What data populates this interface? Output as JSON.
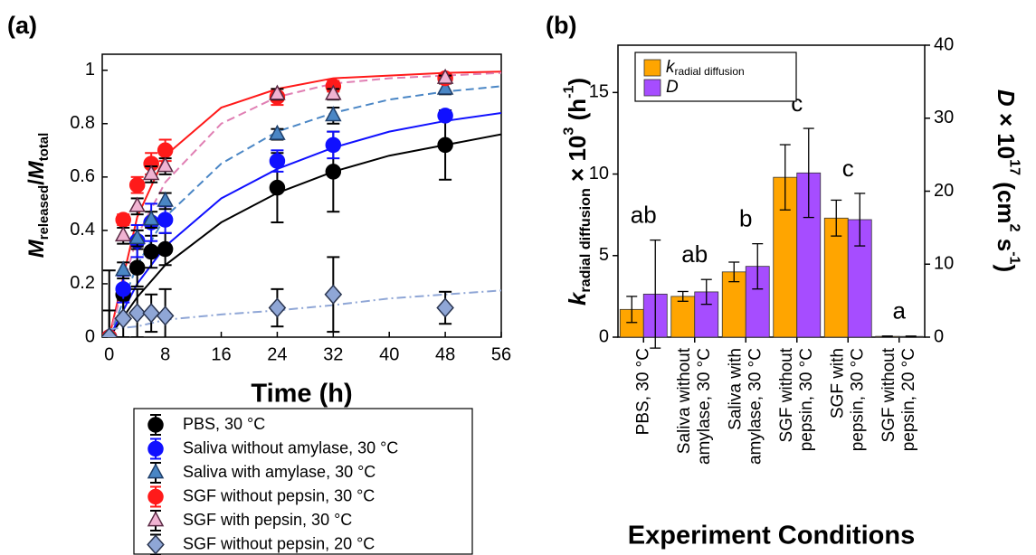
{
  "chart_data": [
    {
      "type": "line",
      "panel_label": "(a)",
      "xlabel": "Time (h)",
      "ylabel_parts": [
        "M",
        "released",
        "/",
        "M",
        "total"
      ],
      "ylabel_styles": [
        "main-italic",
        "sub",
        "main",
        "main-italic",
        "sub"
      ],
      "xlim": [
        -1,
        56
      ],
      "ylim": [
        0,
        1.06
      ],
      "xticks": [
        0,
        8,
        16,
        24,
        32,
        40,
        48,
        56
      ],
      "yticks": [
        0,
        0.2,
        0.4,
        0.6,
        0.8,
        1
      ],
      "x": [
        0,
        2,
        4,
        6,
        8,
        24,
        32,
        48
      ],
      "fit_x": [
        0,
        4,
        8,
        16,
        24,
        32,
        40,
        48,
        56
      ],
      "legend": "below",
      "series": [
        {
          "name": "PBS, 30 °C",
          "color": "#000000",
          "edge_color": "#000000",
          "marker": "circle",
          "line_style": "solid",
          "values": [
            0,
            0.16,
            0.26,
            0.32,
            0.33,
            0.56,
            0.62,
            0.72
          ],
          "errors": [
            0.25,
            0.08,
            0.07,
            0.06,
            0.06,
            0.13,
            0.15,
            0.13
          ],
          "fit_values": [
            0,
            0.15,
            0.27,
            0.43,
            0.54,
            0.62,
            0.68,
            0.72,
            0.76
          ]
        },
        {
          "name": "Saliva without amylase, 30 °C",
          "color": "#1010ff",
          "edge_color": "#1010ff",
          "marker": "circle",
          "line_style": "solid",
          "values": [
            0,
            0.18,
            0.36,
            0.43,
            0.44,
            0.66,
            0.72,
            0.83
          ],
          "errors": [
            0,
            0.05,
            0.06,
            0.07,
            0.05,
            0.04,
            0.05,
            0.01
          ],
          "fit_values": [
            0,
            0.2,
            0.34,
            0.52,
            0.63,
            0.71,
            0.77,
            0.81,
            0.84
          ]
        },
        {
          "name": "Saliva with amylase, 30 °C",
          "color": "#4a86c5",
          "edge_color": "#1f3f6a",
          "marker": "triangle",
          "line_style": "dashed",
          "values": [
            0,
            0.25,
            0.37,
            0.44,
            0.51,
            0.76,
            0.83,
            0.93
          ],
          "errors": [
            0,
            0.03,
            0.03,
            0.03,
            0.03,
            0.02,
            0.03,
            0.02
          ],
          "fit_values": [
            0,
            0.27,
            0.45,
            0.65,
            0.77,
            0.84,
            0.89,
            0.92,
            0.94
          ]
        },
        {
          "name": "SGF without pepsin, 30 °C",
          "color": "#ff1a1a",
          "edge_color": "#ff1a1a",
          "marker": "circle",
          "line_style": "solid",
          "values": [
            0,
            0.44,
            0.57,
            0.65,
            0.7,
            0.9,
            0.94,
            0.97
          ],
          "errors": [
            0,
            0.02,
            0.03,
            0.04,
            0.04,
            0.03,
            0.02,
            0.01
          ],
          "fit_values": [
            0,
            0.45,
            0.68,
            0.86,
            0.93,
            0.97,
            0.98,
            0.99,
            0.995
          ]
        },
        {
          "name": "SGF with pepsin, 30 °C",
          "color": "#f0b3d2",
          "edge_color": "#5a2a44",
          "marker": "triangle",
          "line_style": "dashed",
          "values": [
            0,
            0.38,
            0.49,
            0.61,
            0.64,
            0.91,
            0.91,
            0.97
          ],
          "errors": [
            0,
            0.03,
            0.03,
            0.03,
            0.03,
            0.02,
            0.02,
            0.01
          ],
          "fit_values": [
            0,
            0.38,
            0.58,
            0.8,
            0.9,
            0.95,
            0.97,
            0.98,
            0.99
          ]
        },
        {
          "name": "SGF without pepsin, 20 °C",
          "color": "#8fa6d6",
          "edge_color": "#2a3550",
          "marker": "diamond",
          "line_style": "dashdot",
          "values": [
            0,
            0.07,
            0.09,
            0.09,
            0.08,
            0.11,
            0.16,
            0.11
          ],
          "errors": [
            0.1,
            0.07,
            0.09,
            0.07,
            0.1,
            0.07,
            0.14,
            0.06
          ],
          "fit_values": [
            0.03,
            0.04,
            0.065,
            0.085,
            0.1,
            0.12,
            0.145,
            0.16,
            0.175
          ]
        }
      ]
    },
    {
      "type": "bar",
      "panel_label": "(b)",
      "xlabel": "Experiment Conditions",
      "categories": [
        [
          "PBS, 30 °C"
        ],
        [
          "Saliva without",
          "amylase, 30 °C"
        ],
        [
          "Saliva with",
          "amylase, 30 °C"
        ],
        [
          "SGF without",
          "pepsin, 30 °C"
        ],
        [
          "SGF with",
          "pepsin, 30 °C"
        ],
        [
          "SGF without",
          "pepsin, 20 °C"
        ]
      ],
      "group_labels": [
        "ab",
        "ab",
        "b",
        "c",
        "c",
        "a"
      ],
      "ylabel_parts": [
        "k",
        "radial diffusion",
        " × 10",
        "3",
        " (h",
        "-1",
        ")"
      ],
      "ylabel_styles": [
        "main-italic",
        "sub",
        "main",
        "sup",
        "main",
        "sup",
        "main"
      ],
      "y2label_parts": [
        "D",
        " × 10",
        "17",
        " (cm",
        "2",
        " s",
        "-1",
        ")"
      ],
      "y2label_styles": [
        "main-italic",
        "main",
        "sup",
        "main",
        "sup",
        "main",
        "sup",
        "main"
      ],
      "ylim": [
        0,
        17.9
      ],
      "yticks": [
        0,
        5,
        10,
        15
      ],
      "y2lim": [
        0,
        40
      ],
      "y2ticks": [
        0,
        10,
        20,
        30,
        40
      ],
      "legend": "upper left",
      "series": [
        {
          "name": "k",
          "name_sub": "radial diffusion",
          "color": "#ffa500",
          "values": [
            1.7,
            2.5,
            4.0,
            9.8,
            7.3,
            0.05
          ],
          "errors": [
            0.8,
            0.3,
            0.6,
            2.0,
            1.1,
            0.02
          ]
        },
        {
          "name": "D",
          "color": "#a64dff",
          "axis": "y2",
          "values": [
            5.9,
            6.2,
            9.7,
            22.5,
            16.1,
            0.1
          ],
          "errors": [
            7.4,
            1.7,
            3.1,
            6.1,
            3.6,
            0.05
          ]
        }
      ]
    }
  ]
}
